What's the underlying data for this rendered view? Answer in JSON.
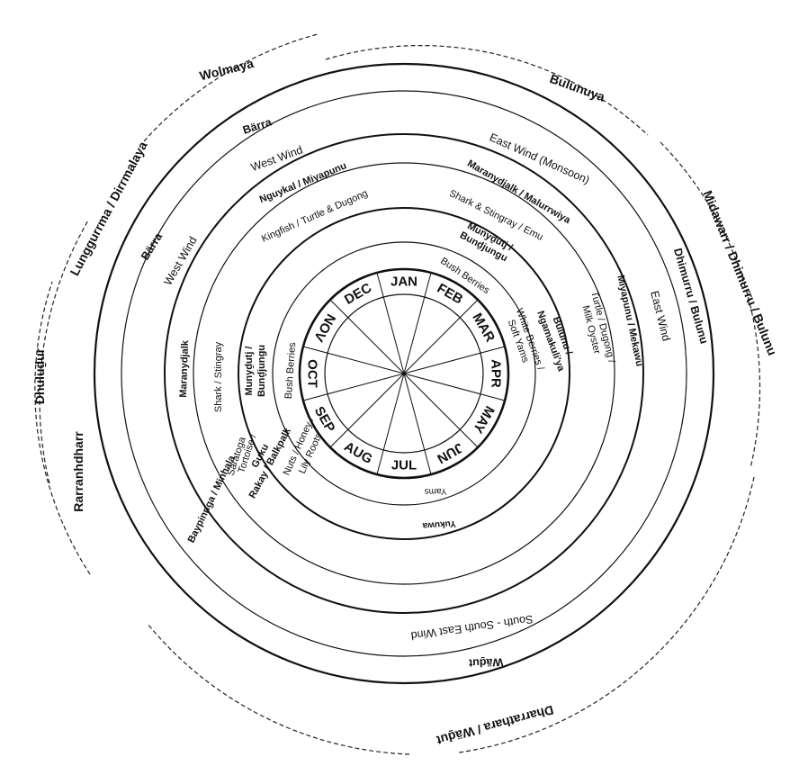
{
  "months": [
    "JAN",
    "FEB",
    "MAR",
    "APR",
    "MAY",
    "JUN",
    "JUL",
    "AUG",
    "SEP",
    "OCT",
    "NOV",
    "DEC"
  ],
  "outer_seasons": {
    "wolmaya": "Wolmaya",
    "bulunuya": "Bulunuya",
    "midawarr": "Midawarr / Dhimurru / Bulunu",
    "dharrathara": "Dharrathara / Wäḏut",
    "rarranhdharr": "Rarranhdharr",
    "dhuludur": "Dhuluḏur",
    "lunggurrma": "Lunggurrma / Dirrmalaya"
  },
  "season_names": {
    "barra_top": "Bärra",
    "barra_left": "Bärra",
    "dhimurru": "Dhimurru / Bulunu",
    "waḏut": "Wäḏut"
  },
  "winds": {
    "west_top": "West Wind",
    "west_left": "West Wind",
    "east_monsoon": "East Wind (Monsoon)",
    "east": "East Wind",
    "south_east": "South - South East Wind"
  },
  "calendar_names": {
    "nguykal": "Nguykal / Miyapunu",
    "maranydjalk_malurrwiya": "Maranydjalk / Malurrwiya",
    "miyapunu_mekawu": "Miyapunu / Mekawu",
    "maranydjalk": "Maranydjalk",
    "baypinnga": "Baypinnga / Minhala"
  },
  "sea_foods": {
    "kingfish": "Kingfish / Turtle & Dugong",
    "shark_emu": "Shark & Stingray / Emu",
    "turtle_1": "Turtle / Dugong /",
    "turtle_2": "Milk Oyster",
    "shark_stingray": "Shark / Stingray",
    "tortoise_1": "Tortoise /",
    "tortoise_2": "Saratoga"
  },
  "fruit_names": {
    "munydutj_top_1": "Munyḏutj /",
    "munydutj_top_2": "Bunḏjungu",
    "bulunu_1": "Bulunu /",
    "bulunu_2": "Ngamakuli'ya",
    "yukuwa": "Yukuwa",
    "rakay_1": "Rakay / Balkpalk",
    "rakay_2": "Guku",
    "munydutj_left_1": "Munyḏutj /",
    "munydutj_left_2": "Bunḏjungu"
  },
  "foods": {
    "bush_berries_top": "Bush Berries",
    "white_berries_1": "White Berries /",
    "white_berries_2": "Soft Yams",
    "yams": "Yams",
    "nuts_1": "Nuts / Honey /",
    "nuts_2": "Lily Roots",
    "bush_berries_left": "Bush Berries"
  }
}
